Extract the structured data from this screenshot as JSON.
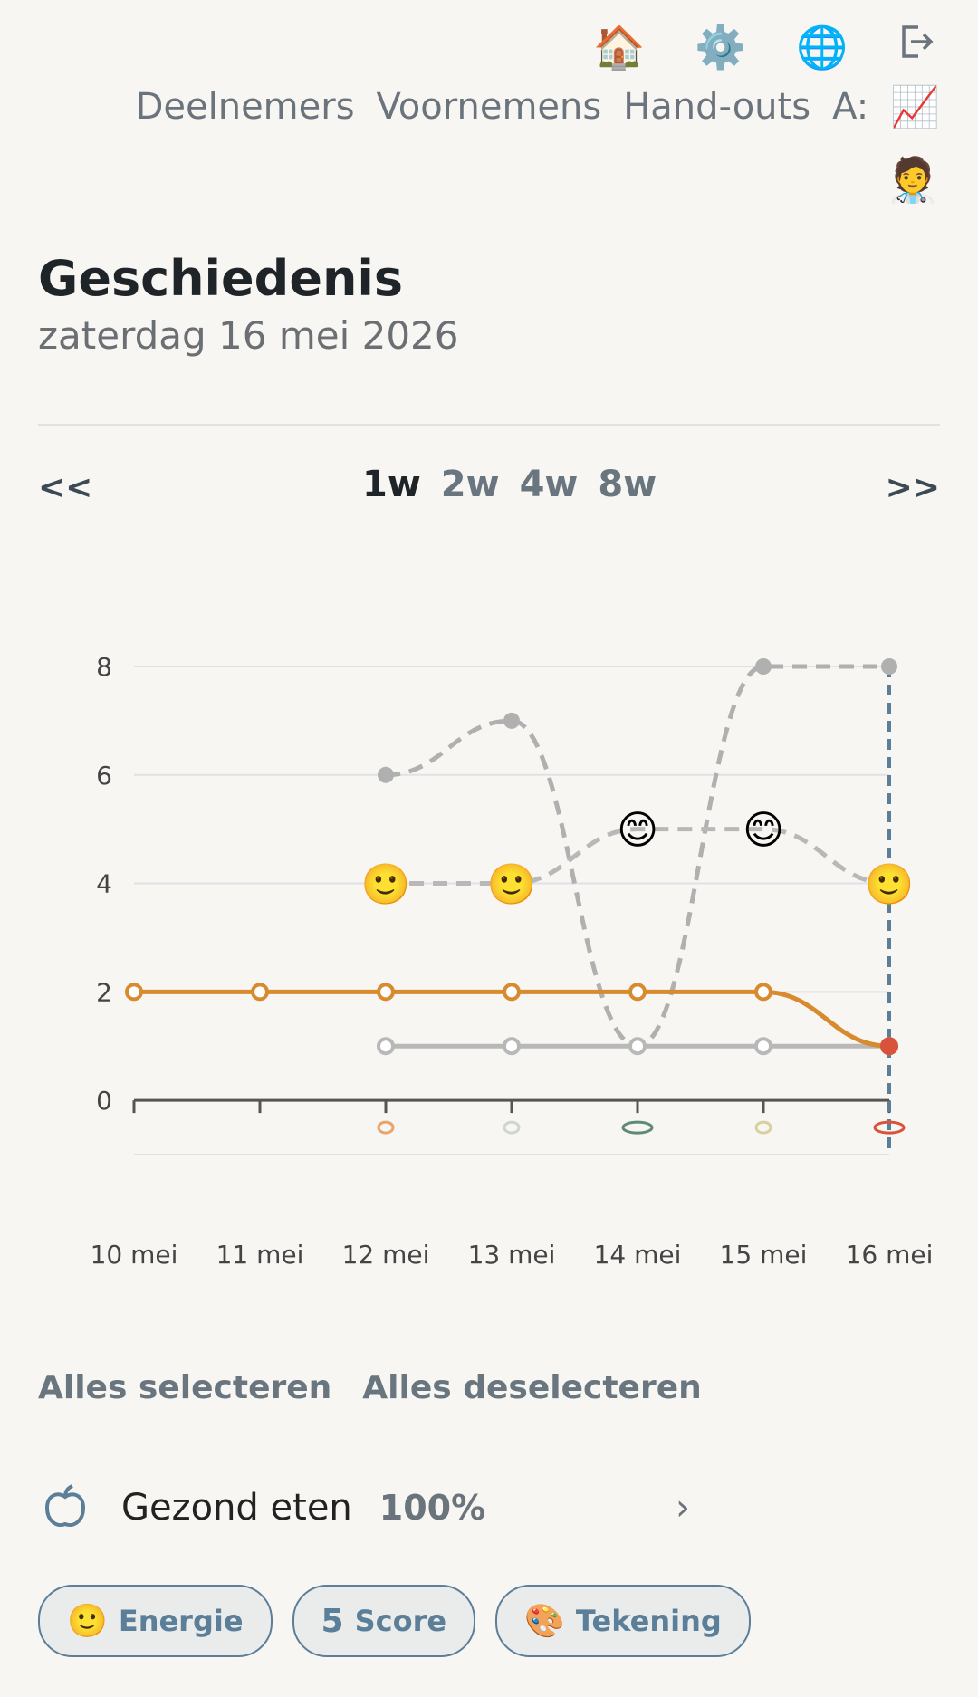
{
  "top_icons": [
    {
      "name": "home-icon",
      "glyph": "🏠"
    },
    {
      "name": "settings-icon",
      "glyph": "⚙️"
    },
    {
      "name": "language-icon",
      "glyph": "🌐"
    },
    {
      "name": "logout-icon",
      "glyph": "⎘"
    }
  ],
  "nav": {
    "participants": "Deelnemers",
    "resolutions": "Voornemens",
    "handouts": "Hand-outs",
    "a_label": "A:",
    "chart_glyph": "📈",
    "avatar_glyph": "🧑‍⚕️"
  },
  "page": {
    "title": "Geschiedenis",
    "date": "zaterdag 16 mei 2026"
  },
  "range": {
    "prev": "<<",
    "next": ">>",
    "options": [
      "1w",
      "2w",
      "4w",
      "8w"
    ],
    "active": "1w"
  },
  "chart_data": {
    "type": "line",
    "x": [
      "10 mei",
      "11 mei",
      "12 mei",
      "13 mei",
      "14 mei",
      "15 mei",
      "16 mei"
    ],
    "ylim": [
      -1,
      8
    ],
    "yticks": [
      0,
      2,
      4,
      6,
      8
    ],
    "series": [
      {
        "style": "solid",
        "color": "#d88a2e",
        "values": [
          2,
          2,
          2,
          2,
          2,
          2,
          1
        ]
      },
      {
        "style": "solid",
        "color": "#b8b8b8",
        "values": [
          null,
          null,
          1,
          1,
          1,
          1,
          1
        ]
      },
      {
        "style": "dashed",
        "color": "#b0b0b0",
        "values": [
          null,
          null,
          6,
          7,
          1,
          8,
          8
        ]
      },
      {
        "style": "dashed",
        "color": "#b8b8b8",
        "marker": "emoji",
        "values": [
          null,
          null,
          4,
          4,
          5,
          5,
          4
        ],
        "markers": [
          "",
          "",
          "🙂",
          "🙂",
          "😊",
          "😊",
          "🙂"
        ]
      }
    ],
    "highlight_x": "16 mei",
    "highlight_color": "#5b7f99",
    "last_point_color": "#d9533a"
  },
  "selection": {
    "select_all": "Alles selecteren",
    "deselect_all": "Alles deselecteren"
  },
  "goal": {
    "name": "Gezond eten",
    "percent": "100%",
    "chevron": "›"
  },
  "chips": [
    {
      "icon": "🙂",
      "label": "Energie"
    },
    {
      "icon": "5",
      "label": "Score"
    },
    {
      "icon": "🎨",
      "label": "Tekening"
    }
  ]
}
